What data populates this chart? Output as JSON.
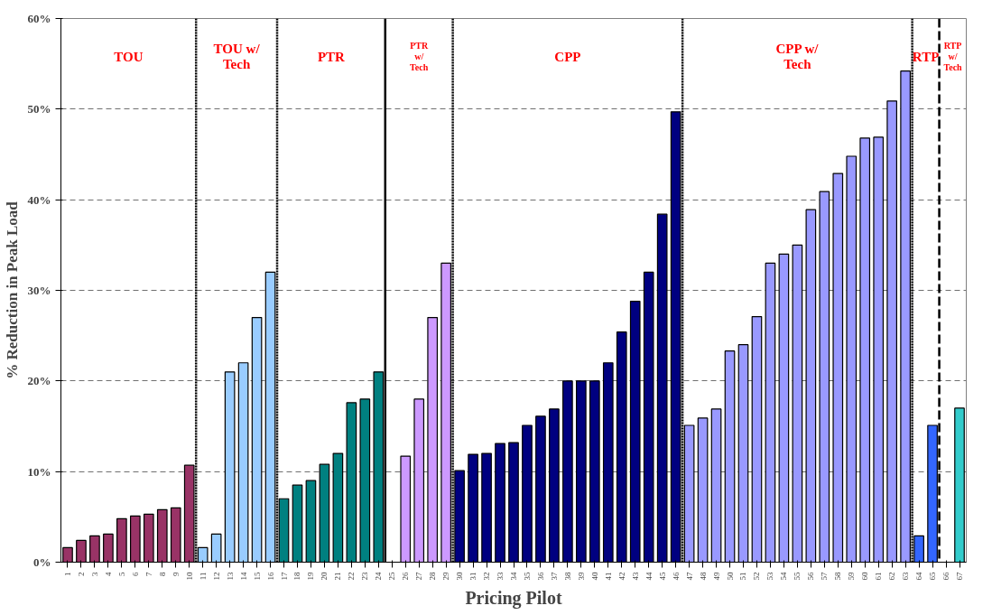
{
  "chart_data": {
    "type": "bar",
    "xlabel": "Pricing Pilot",
    "ylabel": "% Reduction in Peak Load",
    "xlim": [
      0.5,
      67.5
    ],
    "xticks": [
      1,
      2,
      3,
      4,
      5,
      6,
      7,
      8,
      9,
      10,
      11,
      12,
      13,
      14,
      15,
      16,
      17,
      18,
      19,
      20,
      21,
      22,
      23,
      24,
      25,
      26,
      27,
      28,
      29,
      30,
      31,
      32,
      33,
      34,
      35,
      36,
      37,
      38,
      39,
      40,
      41,
      42,
      43,
      44,
      45,
      46,
      47,
      48,
      49,
      50,
      51,
      52,
      53,
      54,
      55,
      56,
      57,
      58,
      59,
      60,
      61,
      62,
      63,
      64,
      65,
      66,
      67
    ],
    "ylim": [
      0,
      60
    ],
    "yticks": [
      {
        "value": 0,
        "label": "0%"
      },
      {
        "value": 10,
        "label": "10%"
      },
      {
        "value": 20,
        "label": "20%"
      },
      {
        "value": 30,
        "label": "30%"
      },
      {
        "value": 40,
        "label": "40%"
      },
      {
        "value": 50,
        "label": "50%"
      },
      {
        "value": 60,
        "label": "60%"
      }
    ],
    "grid": "y",
    "series": [
      {
        "color": "#993366",
        "x": [
          1,
          2,
          3,
          4,
          5,
          6,
          7,
          8,
          9,
          10
        ],
        "values": [
          1.6,
          2.4,
          2.9,
          3.1,
          4.8,
          5.1,
          5.3,
          5.8,
          6.0,
          10.7
        ]
      },
      {
        "color": "#99ccff",
        "x": [
          11,
          12,
          13,
          14,
          15,
          16
        ],
        "values": [
          1.6,
          3.1,
          21,
          22,
          27,
          32
        ]
      },
      {
        "color": "#008080",
        "x": [
          17,
          18,
          19,
          20,
          21,
          22,
          23,
          24
        ],
        "values": [
          7,
          8.5,
          9,
          10.8,
          12,
          17.6,
          18,
          21
        ]
      },
      {
        "color": "#cc99ff",
        "x": [
          26,
          27,
          28,
          29
        ],
        "values": [
          11.7,
          18,
          27,
          33
        ]
      },
      {
        "color": "#000080",
        "x": [
          30,
          31,
          32,
          33,
          34,
          35,
          36,
          37,
          38,
          39,
          40,
          41,
          42,
          43,
          44,
          45,
          46
        ],
        "values": [
          10.1,
          11.9,
          12,
          13.1,
          13.2,
          15.1,
          16.1,
          16.9,
          20,
          20,
          20,
          22,
          25.4,
          28.8,
          32,
          38.4,
          49.7
        ]
      },
      {
        "color": "#9999ff",
        "x": [
          47,
          48,
          49,
          50,
          51,
          52,
          53,
          54,
          55,
          56,
          57,
          58,
          59,
          60,
          61,
          62,
          63
        ],
        "values": [
          15.1,
          15.9,
          16.9,
          23.3,
          24,
          27.1,
          33,
          34,
          35,
          38.9,
          40.9,
          42.9,
          44.8,
          46.8,
          46.9,
          50.9,
          54.2
        ]
      },
      {
        "color": "#3366ff",
        "x": [
          64,
          65
        ],
        "values": [
          2.9,
          15.1
        ]
      },
      {
        "color": "#33cccc",
        "x": [
          67
        ],
        "values": [
          17
        ]
      }
    ],
    "annotations": [
      "TOU",
      "TOU w/\nTech",
      "PTR",
      "PTR\nw/\nTech",
      "CPP",
      "CPP w/\nTech",
      "RTP",
      "RTP\nw/\nTech"
    ],
    "ref_lines": [
      {
        "axis": "x",
        "value": 10.5,
        "color": "#000000",
        "line_style": "dotted"
      },
      {
        "axis": "x",
        "value": 16.5,
        "color": "#000000",
        "line_style": "dotted"
      },
      {
        "axis": "x",
        "value": 24.5,
        "color": "#000000",
        "line_style": "solid"
      },
      {
        "axis": "x",
        "value": 29.5,
        "color": "#000000",
        "line_style": "dotted"
      },
      {
        "axis": "x",
        "value": 46.5,
        "color": "#000000",
        "line_style": "dotted"
      },
      {
        "axis": "x",
        "value": 63.5,
        "color": "#000000",
        "line_style": "dotted"
      },
      {
        "axis": "x",
        "value": 65.5,
        "color": "#000000",
        "line_style": "dashed"
      }
    ]
  }
}
